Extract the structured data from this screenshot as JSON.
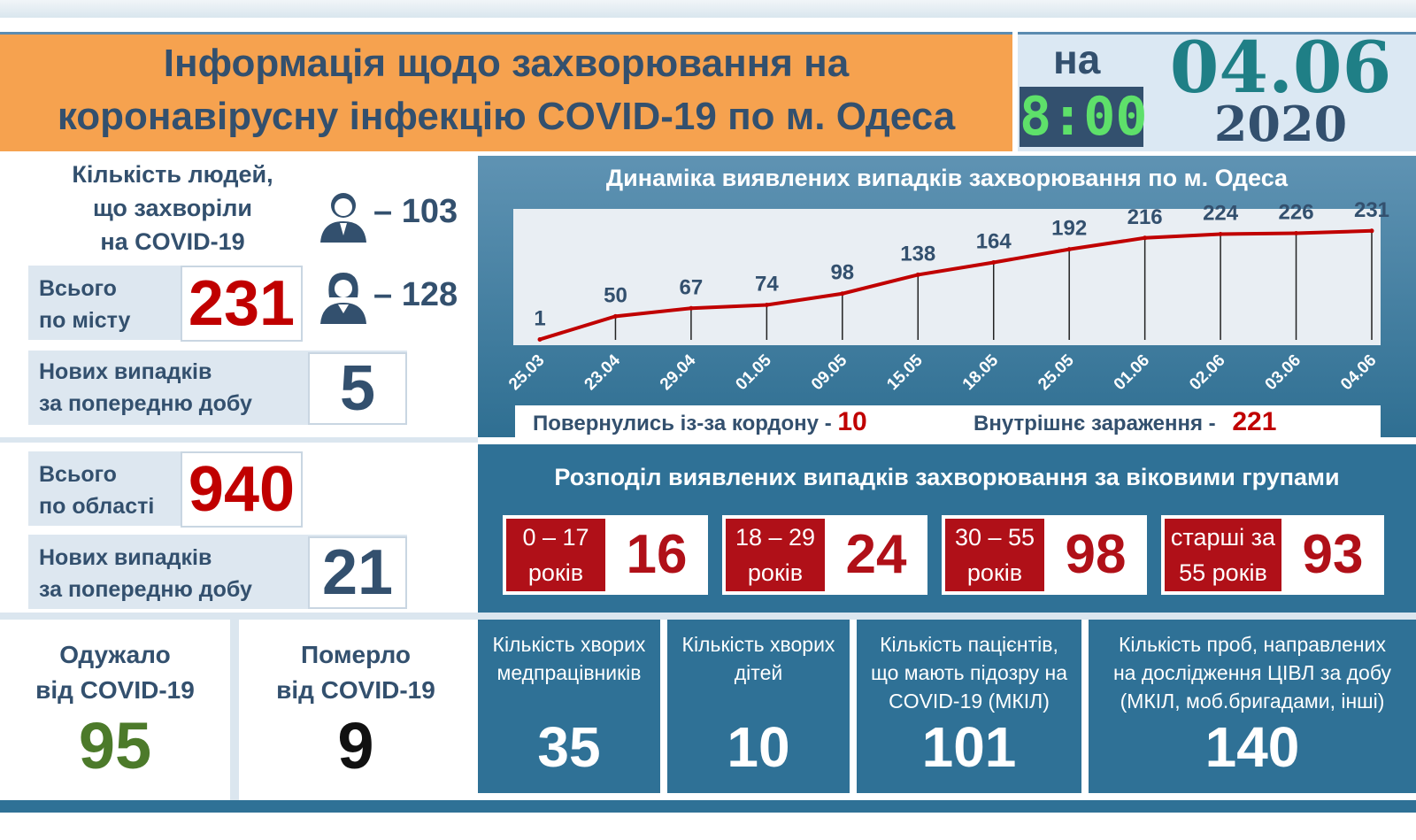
{
  "header": {
    "title_line1": "Інформація щодо захворювання на",
    "title_line2": "коронавірусну інфекцію COVID-19 по м. Одеса",
    "na": "на",
    "time": "8:00",
    "date": "04.06",
    "year": "2020"
  },
  "city": {
    "people_title_1": "Кількість людей,",
    "people_title_2": "що захворіли",
    "people_title_3": "на COVID-19",
    "male": "– 103",
    "female": "– 128",
    "total_label_1": "Всього",
    "total_label_2": "по місту",
    "total": "231",
    "new_label_1": "Нових випадків",
    "new_label_2": "за попередню добу",
    "new": "5"
  },
  "region": {
    "total_label_1": "Всього",
    "total_label_2": "по області",
    "total": "940",
    "new_label_1": "Нових випадків",
    "new_label_2": "за попередню добу",
    "new": "21"
  },
  "outcomes": {
    "recovered_label_1": "Одужало",
    "recovered_label_2": "від COVID-19",
    "recovered": "95",
    "died_label_1": "Померло",
    "died_label_2": "від COVID-19",
    "died": "9"
  },
  "chart_data": {
    "type": "line",
    "title": "Динаміка виявлених випадків захворювання по м. Одеса",
    "categories": [
      "25.03",
      "23.04",
      "29.04",
      "01.05",
      "09.05",
      "15.05",
      "18.05",
      "25.05",
      "01.06",
      "02.06",
      "03.06",
      "04.06"
    ],
    "values": [
      1,
      50,
      67,
      74,
      98,
      138,
      164,
      192,
      216,
      224,
      226,
      231
    ],
    "color": "#c00000",
    "ylim": [
      0,
      240
    ]
  },
  "sources": {
    "returned_label": "Повернулись із-за кордону -",
    "returned": "10",
    "internal_label": "Внутрішнє зараження -",
    "internal": "221"
  },
  "age": {
    "title": "Розподіл виявлених випадків захворювання за віковими групами",
    "groups": [
      {
        "line1": "0 – 17",
        "line2": "років",
        "value": "16"
      },
      {
        "line1": "18 – 29",
        "line2": "років",
        "value": "24"
      },
      {
        "line1": "30 – 55",
        "line2": "років",
        "value": "98"
      },
      {
        "line1": "старші за",
        "line2": "55 років",
        "value": "93"
      }
    ]
  },
  "stats": [
    {
      "l1": "Кількість хворих",
      "l2": "медпрацівників",
      "l3": "",
      "value": "35"
    },
    {
      "l1": "Кількість хворих",
      "l2": "дітей",
      "l3": "",
      "value": "10"
    },
    {
      "l1": "Кількість пацієнтів,",
      "l2": "що мають підозру на",
      "l3": "COVID-19 (МКІЛ)",
      "value": "101"
    },
    {
      "l1": "Кількість проб, направлених",
      "l2": "на дослідження ЦІВЛ за добу",
      "l3": "(МКІЛ, моб.бригадами, інші)",
      "value": "140"
    }
  ],
  "colors": {
    "brand_dark": "#33506e",
    "accent_red": "#c00000",
    "teal": "#2f7196",
    "orange": "#f6a24f",
    "green": "#4c7a2a"
  }
}
